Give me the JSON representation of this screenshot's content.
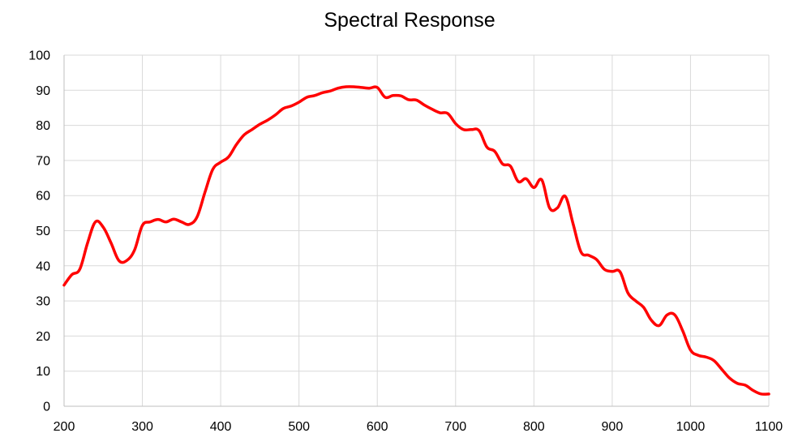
{
  "chart_data": {
    "type": "line",
    "title": "Spectral Response",
    "xlabel": "",
    "ylabel": "",
    "xlim": [
      200,
      1100
    ],
    "ylim": [
      0,
      100
    ],
    "x_ticks": [
      200,
      300,
      400,
      500,
      600,
      700,
      800,
      900,
      1000,
      1100
    ],
    "y_ticks": [
      0,
      10,
      20,
      30,
      40,
      50,
      60,
      70,
      80,
      90,
      100
    ],
    "grid": true,
    "legend": "none",
    "series": [
      {
        "color": "#ff0000",
        "x": [
          200,
          210,
          220,
          230,
          240,
          250,
          260,
          270,
          280,
          290,
          300,
          310,
          320,
          330,
          340,
          350,
          360,
          370,
          380,
          390,
          400,
          410,
          420,
          430,
          440,
          450,
          460,
          470,
          480,
          490,
          500,
          510,
          520,
          530,
          540,
          550,
          560,
          570,
          580,
          590,
          600,
          610,
          620,
          630,
          640,
          650,
          660,
          670,
          680,
          690,
          700,
          710,
          720,
          730,
          740,
          750,
          760,
          770,
          780,
          790,
          800,
          810,
          820,
          830,
          840,
          850,
          860,
          870,
          880,
          890,
          900,
          910,
          920,
          930,
          940,
          950,
          960,
          970,
          980,
          990,
          1000,
          1010,
          1020,
          1030,
          1040,
          1050,
          1060,
          1070,
          1080,
          1090,
          1100
        ],
        "y": [
          34.5,
          37.5,
          39,
          46.5,
          52.5,
          51,
          46.5,
          41.5,
          41.5,
          44.5,
          51.5,
          52.5,
          53.2,
          52.5,
          53.3,
          52.5,
          51.8,
          54,
          61,
          67.5,
          69.5,
          71,
          74.5,
          77.3,
          78.8,
          80.3,
          81.5,
          83,
          84.8,
          85.5,
          86.6,
          88,
          88.5,
          89.3,
          89.8,
          90.6,
          91,
          91,
          90.8,
          90.6,
          90.8,
          88,
          88.5,
          88.4,
          87.3,
          87.2,
          85.8,
          84.6,
          83.6,
          83.4,
          80.5,
          78.8,
          78.8,
          78.5,
          73.8,
          72.6,
          69,
          68.4,
          64,
          64.8,
          62.3,
          64.5,
          56.5,
          56.5,
          59.8,
          52,
          44,
          43,
          41.8,
          39,
          38.4,
          38.3,
          32.3,
          30,
          28.2,
          24.5,
          23,
          26,
          26,
          21.5,
          16,
          14.5,
          14,
          13,
          10.5,
          8,
          6.5,
          6,
          4.5,
          3.5,
          3.5
        ]
      }
    ]
  }
}
